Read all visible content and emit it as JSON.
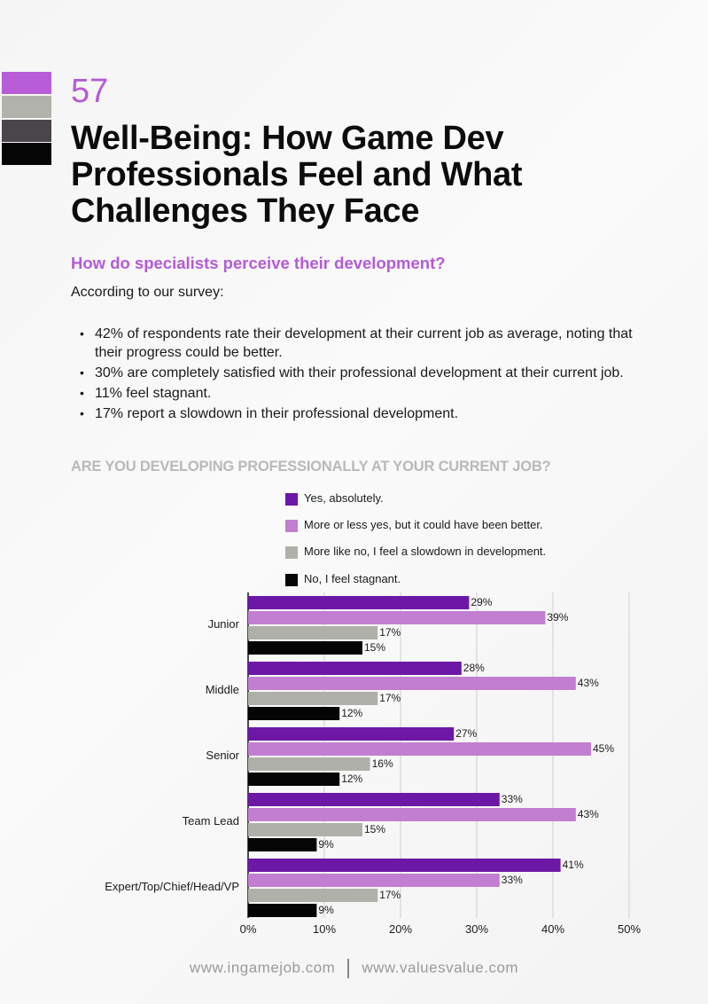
{
  "page": {
    "number": "57",
    "title_lines": [
      "Well-Being: How Game Dev",
      "Professionals Feel and What",
      "Challenges They Face"
    ],
    "swatch_colors": [
      "#b85cd8",
      "#b2b2ac",
      "#4a454a",
      "#050505"
    ]
  },
  "section": {
    "heading": "How do specialists perceive their development?",
    "intro": "According to our survey:",
    "bullets": [
      "42% of respondents rate their development at their current job as average, noting that their progress could be better.",
      "30% are completely satisfied with their professional development at their current job.",
      "11% feel stagnant.",
      "17% report a slowdown in their professional development."
    ]
  },
  "chart_data": {
    "type": "bar",
    "orientation": "horizontal",
    "title": "ARE YOU DEVELOPING PROFESSIONALLY AT YOUR CURRENT JOB?",
    "categories": [
      "Junior",
      "Middle",
      "Senior",
      "Team Lead",
      "Expert/Top/Chief/Head/VP"
    ],
    "series": [
      {
        "name": "Yes, absolutely.",
        "color": "#6d17a6",
        "values": [
          29,
          28,
          27,
          33,
          41
        ]
      },
      {
        "name": "More or less yes, but it could have been better.",
        "color": "#c27ed0",
        "values": [
          39,
          43,
          45,
          43,
          33
        ]
      },
      {
        "name": "More like no, I feel a slowdown in development.",
        "color": "#b0b0ab",
        "values": [
          17,
          17,
          16,
          15,
          17
        ]
      },
      {
        "name": "No, I feel stagnant.",
        "color": "#050505",
        "values": [
          15,
          12,
          12,
          9,
          9
        ]
      }
    ],
    "value_suffix": "%",
    "xlim": [
      0,
      50
    ],
    "x_ticks": [
      "0%",
      "10%",
      "20%",
      "30%",
      "40%",
      "50%"
    ],
    "grid": true,
    "legend_position": "top"
  },
  "footer": {
    "left": "www.ingamejob.com",
    "right": "www.valuesvalue.com"
  }
}
